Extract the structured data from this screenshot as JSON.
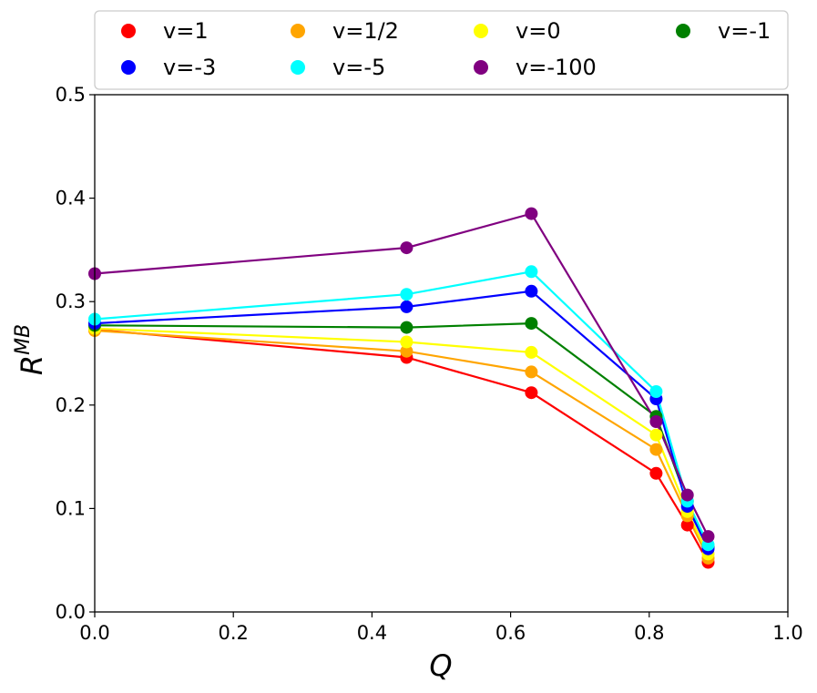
{
  "chart_data": {
    "type": "line",
    "title": "",
    "xlabel": "Q",
    "ylabel": "R",
    "ylabel_superscript": "MB",
    "xlim": [
      0.0,
      1.0
    ],
    "ylim": [
      0.0,
      0.5
    ],
    "xticks": [
      0.0,
      0.2,
      0.4,
      0.6,
      0.8,
      1.0
    ],
    "xtick_labels": [
      "0.0",
      "0.2",
      "0.4",
      "0.6",
      "0.8",
      "1.0"
    ],
    "yticks": [
      0.0,
      0.1,
      0.2,
      0.3,
      0.4,
      0.5
    ],
    "ytick_labels": [
      "0.0",
      "0.1",
      "0.2",
      "0.3",
      "0.4",
      "0.5"
    ],
    "grid": false,
    "legend_position": "top",
    "x": [
      0.0,
      0.45,
      0.63,
      0.81,
      0.855,
      0.885
    ],
    "series": [
      {
        "name": "v=1",
        "color": "#ff0000",
        "values": [
          0.273,
          0.246,
          0.212,
          0.134,
          0.084,
          0.048
        ]
      },
      {
        "name": "v=1/2",
        "color": "#ffa500",
        "values": [
          0.272,
          0.252,
          0.232,
          0.157,
          0.093,
          0.052
        ]
      },
      {
        "name": "v=0",
        "color": "#ffff00",
        "values": [
          0.274,
          0.261,
          0.251,
          0.171,
          0.097,
          0.056
        ]
      },
      {
        "name": "v=-1",
        "color": "#008000",
        "values": [
          0.277,
          0.275,
          0.279,
          0.189,
          0.107,
          0.063
        ]
      },
      {
        "name": "v=-3",
        "color": "#0000ff",
        "values": [
          0.279,
          0.295,
          0.31,
          0.206,
          0.102,
          0.061
        ]
      },
      {
        "name": "v=-5",
        "color": "#00ffff",
        "values": [
          0.283,
          0.307,
          0.329,
          0.213,
          0.107,
          0.065
        ]
      },
      {
        "name": "v=-100",
        "color": "#800080",
        "values": [
          0.327,
          0.352,
          0.385,
          0.184,
          0.113,
          0.073
        ]
      }
    ],
    "legend_order": [
      "v=1",
      "v=1/2",
      "v=0",
      "v=-1",
      "v=-3",
      "v=-5",
      "v=-100"
    ]
  }
}
